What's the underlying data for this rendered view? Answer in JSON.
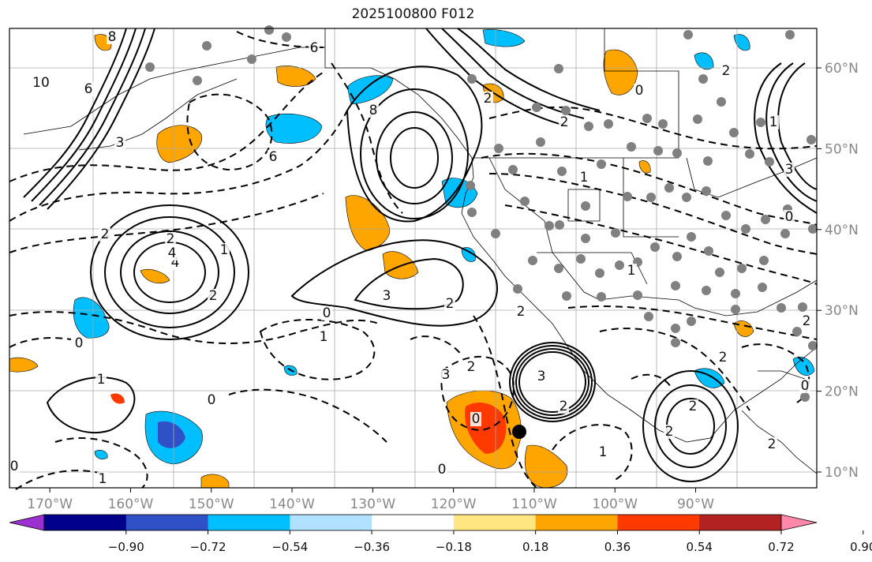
{
  "title": "2025100800 F012",
  "map": {
    "longitude_ticks": [
      "170°W",
      "160°W",
      "150°W",
      "140°W",
      "130°W",
      "120°W",
      "110°W",
      "100°W",
      "90°W"
    ],
    "latitude_ticks": [
      "10°N",
      "20°N",
      "30°N",
      "40°N",
      "50°N",
      "60°N"
    ],
    "contour_labels": [
      "10",
      "6",
      "8",
      "6",
      "2",
      "3",
      "2",
      "8",
      "4",
      "2",
      "6",
      "2",
      "2",
      "3",
      "4",
      "2",
      "1",
      "0",
      "1",
      "0",
      "1",
      "0",
      "2",
      "1",
      "2",
      "0",
      "0",
      "1",
      "2",
      "2",
      "3",
      "2",
      "0",
      "1",
      "2",
      "0",
      "2",
      "2",
      "1",
      "3",
      "0",
      "1",
      "2",
      "0",
      "3"
    ]
  },
  "colorbar": {
    "tick_labels": [
      "−0.90",
      "−0.72",
      "−0.54",
      "−0.36",
      "−0.18",
      "0.18",
      "0.36",
      "0.54",
      "0.72",
      "0.90"
    ],
    "colors": [
      "#9b30d0",
      "#00008b",
      "#3050c8",
      "#00bfff",
      "#b0e2ff",
      "#ffffff",
      "#ffe680",
      "#ffa500",
      "#ff3a00",
      "#b22222",
      "#ff88aa"
    ]
  },
  "chart_data": {
    "type": "heatmap",
    "title": "2025100800 F012",
    "x_range_deg_lon": [
      -175,
      -75
    ],
    "y_range_deg_lat": [
      8,
      65
    ],
    "xticks": [
      -170,
      -160,
      -150,
      -140,
      -130,
      -120,
      -110,
      -100,
      -90
    ],
    "yticks": [
      10,
      20,
      30,
      40,
      50,
      60
    ],
    "colorbar_levels": [
      -0.9,
      -0.72,
      -0.54,
      -0.36,
      -0.18,
      0.18,
      0.36,
      0.54,
      0.72,
      0.9
    ],
    "colorbar_extend": "both",
    "grid": true
  }
}
